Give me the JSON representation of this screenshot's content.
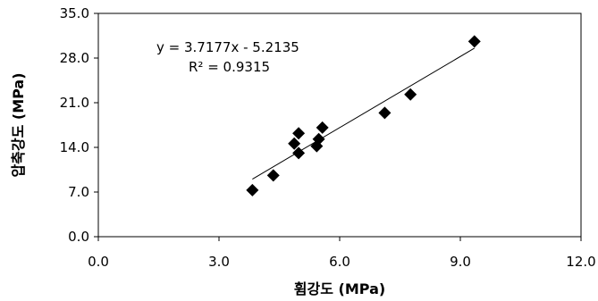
{
  "chart_data": {
    "type": "scatter",
    "xlabel": "휨강도 (MPa)",
    "ylabel": "압축강도 (MPa)",
    "xlim": [
      0,
      12
    ],
    "ylim": [
      0,
      35
    ],
    "x_ticks": [
      "0.0",
      "3.0",
      "6.0",
      "9.0",
      "12.0"
    ],
    "y_ticks": [
      "0.0",
      "7.0",
      "14.0",
      "21.0",
      "28.0",
      "35.0"
    ],
    "grid": false,
    "legend": "none",
    "series": [
      {
        "marker": "diamond",
        "color": "#000000",
        "points": [
          {
            "x": 3.83,
            "y": 7.3
          },
          {
            "x": 4.35,
            "y": 9.6
          },
          {
            "x": 4.87,
            "y": 14.6
          },
          {
            "x": 4.98,
            "y": 16.2
          },
          {
            "x": 4.98,
            "y": 13.1
          },
          {
            "x": 5.43,
            "y": 14.2
          },
          {
            "x": 5.48,
            "y": 15.3
          },
          {
            "x": 5.57,
            "y": 17.1
          },
          {
            "x": 7.12,
            "y": 19.4
          },
          {
            "x": 7.76,
            "y": 22.3
          },
          {
            "x": 9.35,
            "y": 30.6
          }
        ]
      }
    ],
    "trendline": {
      "type": "linear",
      "slope": 3.7177,
      "intercept": -5.2135,
      "x_range": [
        3.83,
        9.35
      ],
      "equation": "y = 3.7177x - 5.2135",
      "r2": "R² = 0.9315",
      "color": "#000000"
    }
  }
}
